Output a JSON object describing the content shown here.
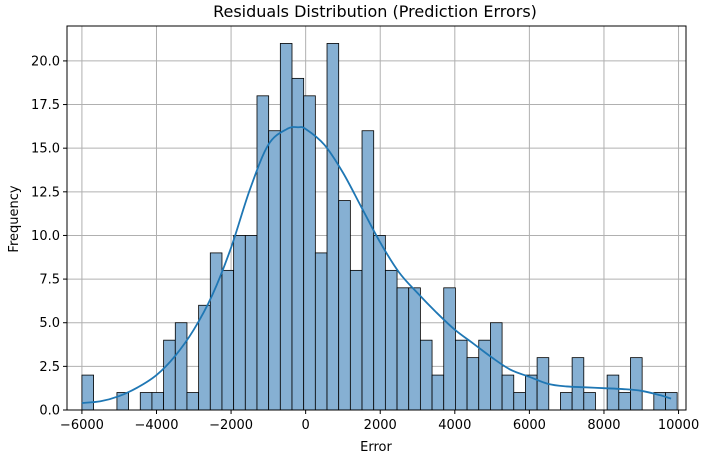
{
  "chart_data": {
    "type": "bar",
    "subtype": "histogram-with-kde",
    "title": "Residuals Distribution (Prediction Errors)",
    "xlabel": "Error",
    "ylabel": "Frequency",
    "xlim": [
      -6400,
      10200
    ],
    "ylim": [
      0,
      22
    ],
    "xticks": [
      -6000,
      -4000,
      -2000,
      0,
      2000,
      4000,
      6000,
      8000,
      10000
    ],
    "xtick_labels": [
      "−6000",
      "−4000",
      "−2000",
      "0",
      "2000",
      "4000",
      "6000",
      "8000",
      "10000"
    ],
    "yticks": [
      0,
      2.5,
      5,
      7.5,
      10,
      12.5,
      15,
      17.5,
      20
    ],
    "ytick_labels": [
      "0.0",
      "2.5",
      "5.0",
      "7.5",
      "10.0",
      "12.5",
      "15.0",
      "17.5",
      "20.0"
    ],
    "grid": true,
    "bin_start": -6000,
    "bin_width": 313,
    "counts": [
      2,
      0,
      0,
      1,
      0,
      1,
      1,
      4,
      5,
      1,
      6,
      9,
      8,
      10,
      10,
      18,
      16,
      21,
      19,
      18,
      9,
      21,
      12,
      8,
      16,
      10,
      8,
      7,
      7,
      4,
      2,
      7,
      4,
      3,
      4,
      5,
      2,
      1,
      2,
      3,
      0,
      1,
      3,
      1,
      0,
      2,
      1,
      3,
      0,
      1,
      1
    ],
    "kde": {
      "x": [
        -6000,
        -5500,
        -5000,
        -4500,
        -4000,
        -3500,
        -3000,
        -2500,
        -2000,
        -1500,
        -1000,
        -500,
        -200,
        0,
        500,
        1000,
        1500,
        2000,
        2500,
        3000,
        3500,
        4000,
        4500,
        5000,
        5500,
        6000,
        6500,
        7000,
        7500,
        8000,
        8500,
        9000,
        9500,
        9800
      ],
      "y": [
        0.4,
        0.5,
        0.8,
        1.3,
        2.0,
        3.1,
        4.6,
        6.6,
        9.3,
        12.6,
        15.2,
        16.1,
        16.2,
        16.1,
        15.2,
        13.6,
        11.6,
        9.6,
        7.9,
        6.7,
        5.6,
        4.6,
        3.8,
        3.0,
        2.3,
        1.9,
        1.5,
        1.35,
        1.3,
        1.25,
        1.2,
        1.1,
        0.85,
        0.65
      ]
    },
    "colors": {
      "bar_fill": "#86b0d3",
      "bar_edge": "#000000",
      "kde_line": "#1f77b4",
      "grid": "#b0b0b0"
    }
  }
}
